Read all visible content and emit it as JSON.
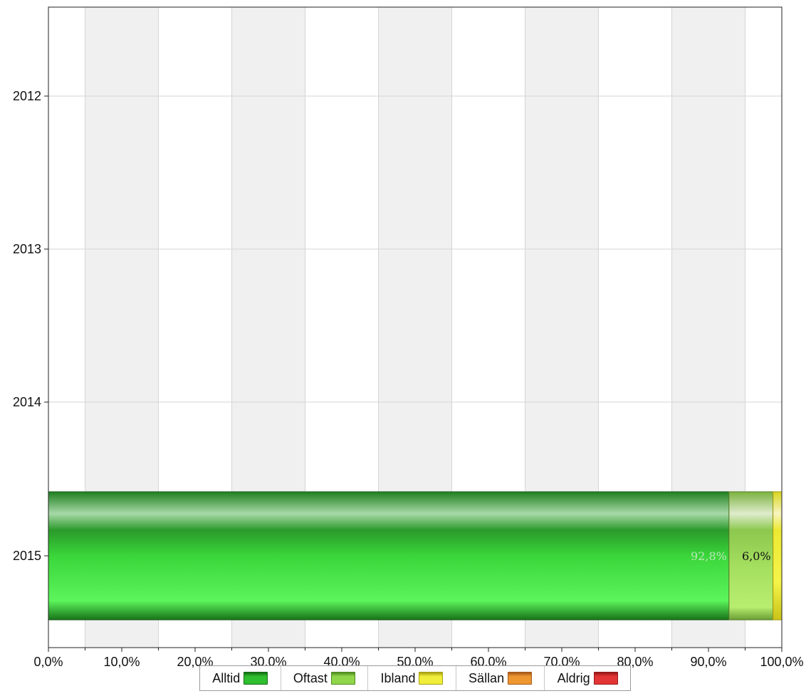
{
  "chart_data": {
    "type": "bar",
    "orientation": "horizontal",
    "stacked": true,
    "categories": [
      "2012",
      "2013",
      "2014",
      "2015"
    ],
    "series": [
      {
        "name": "Alltid",
        "color": "#2fbf2f",
        "values": [
          null,
          null,
          null,
          92.8
        ],
        "labels": [
          "",
          "",
          "",
          "92,8%"
        ]
      },
      {
        "name": "Oftast",
        "color": "#8fd64a",
        "values": [
          null,
          null,
          null,
          6.0
        ],
        "labels": [
          "",
          "",
          "",
          "6,0%"
        ]
      },
      {
        "name": "Ibland",
        "color": "#f0ee3a",
        "values": [
          null,
          null,
          null,
          1.2
        ],
        "labels": [
          "",
          "",
          "",
          ""
        ]
      },
      {
        "name": "Sällan",
        "color": "#ee9630",
        "values": [
          null,
          null,
          null,
          0
        ],
        "labels": [
          "",
          "",
          "",
          ""
        ]
      },
      {
        "name": "Aldrig",
        "color": "#e33535",
        "values": [
          null,
          null,
          null,
          0
        ],
        "labels": [
          "",
          "",
          "",
          ""
        ]
      }
    ],
    "xlim": [
      0,
      100
    ],
    "x_ticks": [
      "0,0%",
      "10,0%",
      "20,0%",
      "30,0%",
      "40,0%",
      "50,0%",
      "60,0%",
      "70,0%",
      "80,0%",
      "90,0%",
      "100,0%"
    ],
    "grid": true,
    "legend_position": "bottom"
  },
  "legend": {
    "items": [
      {
        "label": "Alltid",
        "color": "#2fbf2f",
        "border": "#136b13"
      },
      {
        "label": "Oftast",
        "color": "#8fd64a",
        "border": "#4f8a1f"
      },
      {
        "label": "Ibland",
        "color": "#f0ee3a",
        "border": "#a7a012"
      },
      {
        "label": "Sällan",
        "color": "#ee9630",
        "border": "#a4581a"
      },
      {
        "label": "Aldrig",
        "color": "#e33535",
        "border": "#951818"
      }
    ]
  }
}
